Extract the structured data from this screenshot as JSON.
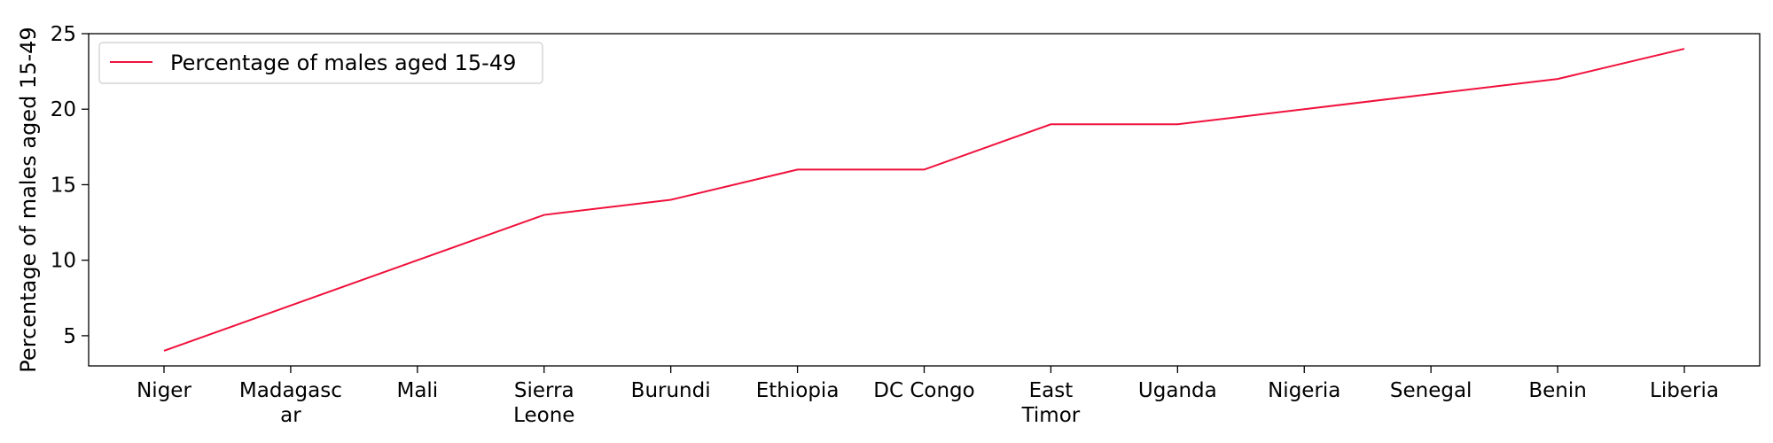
{
  "chart_data": {
    "type": "line",
    "title": "",
    "xlabel": "",
    "ylabel": "Percentage of males aged 15-49",
    "categories": [
      "Niger",
      "Madagascar",
      "Mali",
      "Sierra Leone",
      "Burundi",
      "Ethiopia",
      "DC Congo",
      "East Timor",
      "Uganda",
      "Nigeria",
      "Senegal",
      "Benin",
      "Liberia"
    ],
    "category_labels": [
      [
        "Niger"
      ],
      [
        "Madagasc",
        "ar"
      ],
      [
        "Mali"
      ],
      [
        "Sierra",
        "Leone"
      ],
      [
        "Burundi"
      ],
      [
        "Ethiopia"
      ],
      [
        "DC Congo"
      ],
      [
        "East",
        "Timor"
      ],
      [
        "Uganda"
      ],
      [
        "Nigeria"
      ],
      [
        "Senegal"
      ],
      [
        "Benin"
      ],
      [
        "Liberia"
      ]
    ],
    "series": [
      {
        "name": "Percentage of males aged 15-49",
        "color": "#f0113c",
        "values": [
          4,
          7,
          10,
          13,
          14,
          16,
          16,
          19,
          19,
          20,
          21,
          22,
          24
        ]
      }
    ],
    "ylim": [
      3,
      25
    ],
    "yticks": [
      5,
      10,
      15,
      20,
      25
    ],
    "legend_position": "top-left",
    "grid": false
  }
}
